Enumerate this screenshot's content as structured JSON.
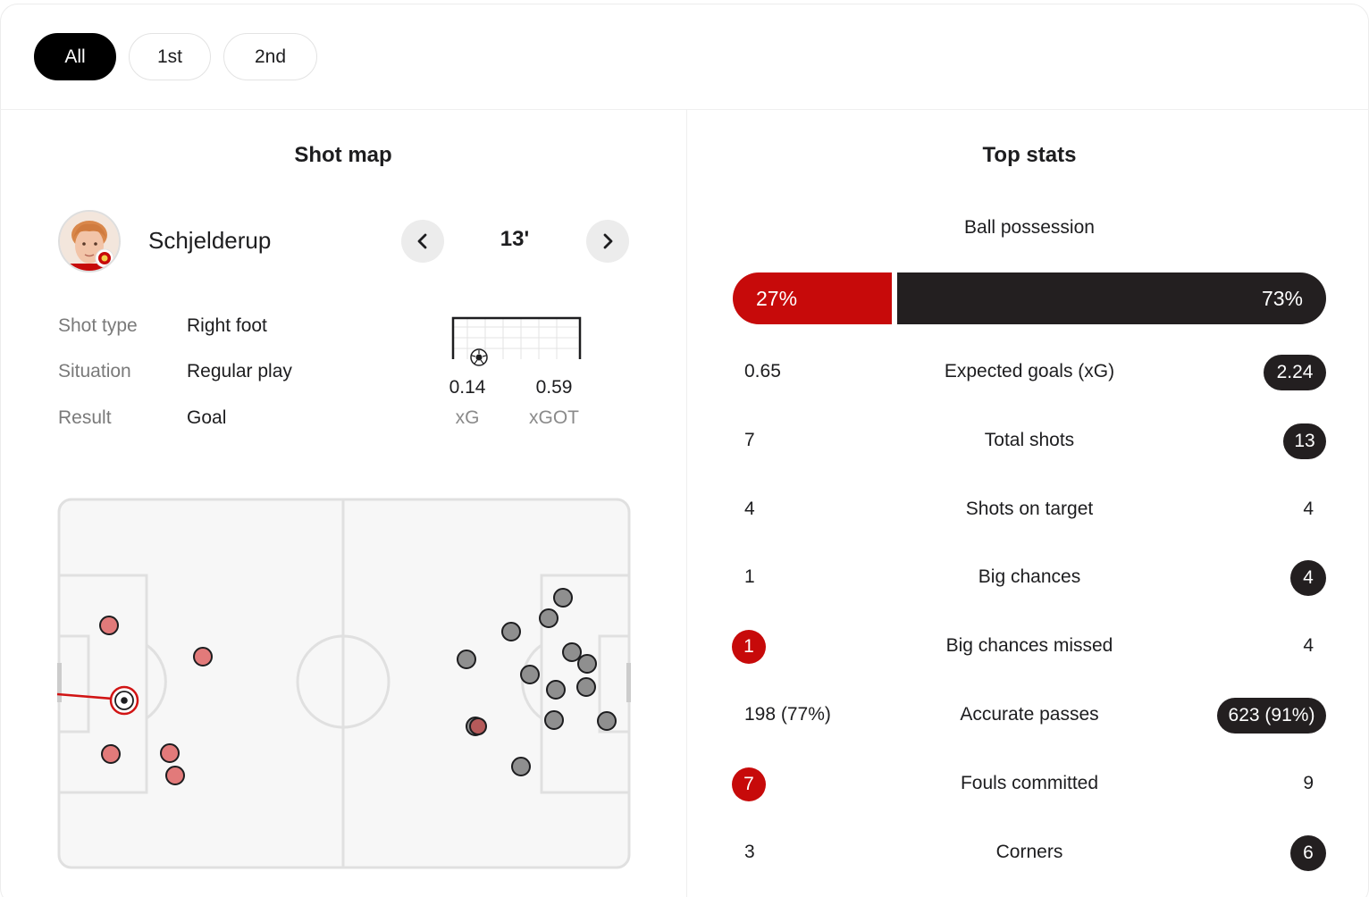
{
  "period_tabs": [
    {
      "label": "All",
      "active": true
    },
    {
      "label": "1st",
      "active": false
    },
    {
      "label": "2nd",
      "active": false
    }
  ],
  "shot_map": {
    "title": "Shot map",
    "player": {
      "name": "Schjelderup",
      "avatar_icon": "player-avatar"
    },
    "minute": "13'",
    "details": [
      {
        "label": "Shot type",
        "value": "Right foot"
      },
      {
        "label": "Situation",
        "value": "Regular play"
      },
      {
        "label": "Result",
        "value": "Goal"
      }
    ],
    "xg": {
      "value": "0.14",
      "label": "xG"
    },
    "xgot": {
      "value": "0.59",
      "label": "xGOT"
    },
    "colors": {
      "home": "#e27a7a",
      "away": "#8f8f8f",
      "selected_ring": "#d11414"
    }
  },
  "top_stats": {
    "title": "Top stats",
    "possession": {
      "label": "Ball possession",
      "home": "27%",
      "away": "73%",
      "home_color": "#c70a0a",
      "away_color": "#231f20"
    },
    "rows": [
      {
        "label": "Expected goals (xG)",
        "home": "0.65",
        "away": "2.24",
        "highlight": "away"
      },
      {
        "label": "Total shots",
        "home": "7",
        "away": "13",
        "highlight": "away"
      },
      {
        "label": "Shots on target",
        "home": "4",
        "away": "4",
        "highlight": "none"
      },
      {
        "label": "Big chances",
        "home": "1",
        "away": "4",
        "highlight": "away"
      },
      {
        "label": "Big chances missed",
        "home": "1",
        "away": "4",
        "highlight": "home"
      },
      {
        "label": "Accurate passes",
        "home": "198 (77%)",
        "away": "623 (91%)",
        "highlight": "away"
      },
      {
        "label": "Fouls committed",
        "home": "7",
        "away": "9",
        "highlight": "home"
      },
      {
        "label": "Corners",
        "home": "3",
        "away": "6",
        "highlight": "away"
      }
    ]
  }
}
